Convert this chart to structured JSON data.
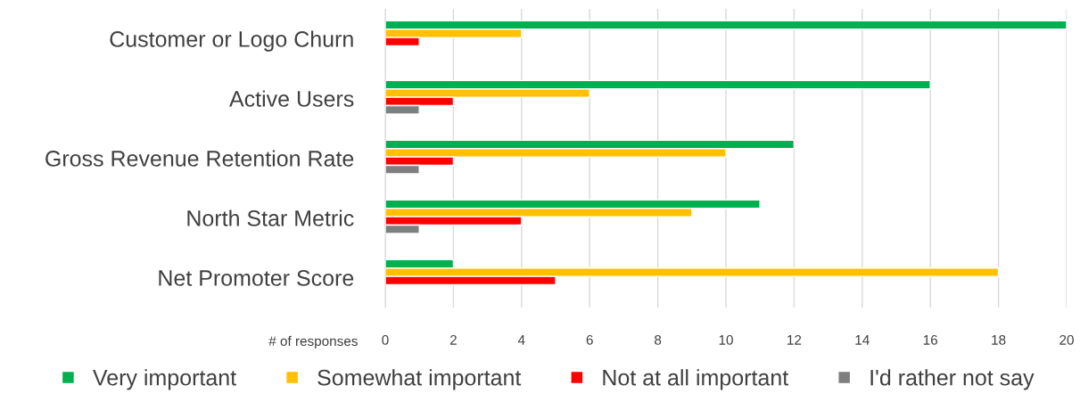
{
  "chart_data": {
    "type": "bar",
    "orientation": "horizontal",
    "xlabel": "# of responses",
    "categories": [
      "Customer or Logo Churn",
      "Active Users",
      "Gross Revenue Retention Rate",
      "North Star Metric",
      "Net Promoter Score"
    ],
    "series": [
      {
        "name": "Very important",
        "color": "#00b050",
        "values": [
          20,
          16,
          12,
          11,
          2
        ]
      },
      {
        "name": "Somewhat important",
        "color": "#ffc000",
        "values": [
          4,
          6,
          10,
          9,
          18
        ]
      },
      {
        "name": "Not at all important",
        "color": "#ff0000",
        "values": [
          1,
          2,
          2,
          4,
          5
        ]
      },
      {
        "name": "I'd rather not say",
        "color": "#7f7f7f",
        "values": [
          null,
          1,
          1,
          1,
          null
        ]
      }
    ],
    "xlim": [
      0,
      20
    ],
    "xticks": [
      0,
      2,
      4,
      6,
      8,
      10,
      12,
      14,
      16,
      18,
      20
    ],
    "grid": "x",
    "legend": "bottom"
  }
}
